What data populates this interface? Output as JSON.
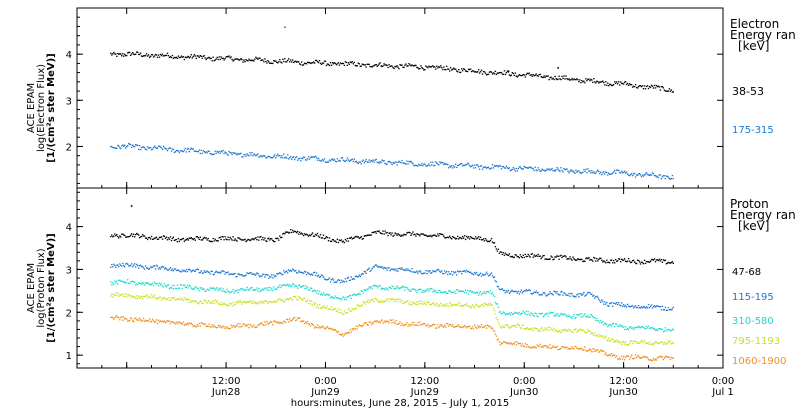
{
  "chart_data": [
    {
      "type": "scatter",
      "panel": "electron",
      "ylabel": [
        "ACE EPAM",
        "log(Electron Flux)",
        "[1/(cm²s ster MeV)]"
      ],
      "legend_title": [
        "Electron",
        "Energy ran",
        "[keV]"
      ],
      "ylim": [
        1.1,
        5.0
      ],
      "yticks": [
        2,
        3,
        4
      ],
      "series": [
        {
          "name": "38-53",
          "color": "#000000",
          "x": [
            0,
            12,
            24,
            36,
            48,
            60,
            66
          ],
          "y": [
            4.0,
            3.9,
            3.8,
            3.72,
            3.55,
            3.35,
            3.22
          ]
        },
        {
          "name": "175-315",
          "color": "#1f77d0",
          "x": [
            0,
            12,
            24,
            36,
            48,
            60,
            66
          ],
          "y": [
            2.0,
            1.85,
            1.72,
            1.62,
            1.52,
            1.42,
            1.33
          ]
        }
      ],
      "outliers": [
        {
          "x": 19,
          "y": 4.6
        },
        {
          "x": 46,
          "y": 3.65
        },
        {
          "x": 52,
          "y": 3.72
        }
      ]
    },
    {
      "type": "scatter",
      "panel": "proton",
      "ylabel": [
        "ACE EPAM",
        "log(Proton Flux)",
        "[1/(cm²s ster MeV)]"
      ],
      "legend_title": [
        "Proton",
        "Energy ran",
        "[keV]"
      ],
      "ylim": [
        0.7,
        4.9
      ],
      "yticks": [
        1,
        2,
        3,
        4
      ],
      "series": [
        {
          "name": "47-68",
          "color": "#000000",
          "x": [
            0,
            6,
            12,
            18,
            20,
            26,
            30,
            36,
            44,
            45,
            50,
            56,
            60,
            66
          ],
          "y": [
            3.8,
            3.7,
            3.72,
            3.7,
            3.9,
            3.65,
            3.85,
            3.8,
            3.7,
            3.35,
            3.3,
            3.22,
            3.2,
            3.18
          ]
        },
        {
          "name": "115-195",
          "color": "#1f77d0",
          "x": [
            0,
            6,
            12,
            18,
            20,
            26,
            30,
            36,
            44,
            45,
            50,
            56,
            58,
            60,
            66
          ],
          "y": [
            3.1,
            3.0,
            2.9,
            2.85,
            3.0,
            2.7,
            3.05,
            2.95,
            2.9,
            2.5,
            2.45,
            2.4,
            2.2,
            2.15,
            2.1
          ]
        },
        {
          "name": "310-580",
          "color": "#20d8cc",
          "x": [
            0,
            6,
            12,
            18,
            20,
            26,
            30,
            36,
            44,
            45,
            50,
            56,
            58,
            60,
            66
          ],
          "y": [
            2.7,
            2.6,
            2.5,
            2.55,
            2.65,
            2.3,
            2.6,
            2.5,
            2.45,
            2.0,
            1.95,
            1.9,
            1.7,
            1.65,
            1.6
          ]
        },
        {
          "name": "795-1193",
          "color": "#c8e020",
          "x": [
            0,
            6,
            12,
            18,
            20,
            26,
            30,
            36,
            44,
            45,
            50,
            56,
            58,
            60,
            66
          ],
          "y": [
            2.4,
            2.3,
            2.2,
            2.25,
            2.35,
            2.0,
            2.3,
            2.2,
            2.15,
            1.7,
            1.6,
            1.55,
            1.35,
            1.3,
            1.28
          ]
        },
        {
          "name": "1060-1900",
          "color": "#f09020",
          "x": [
            0,
            6,
            12,
            18,
            20,
            26,
            30,
            36,
            44,
            45,
            50,
            56,
            58,
            60,
            66
          ],
          "y": [
            1.85,
            1.75,
            1.65,
            1.75,
            1.85,
            1.5,
            1.8,
            1.7,
            1.65,
            1.3,
            1.2,
            1.15,
            1.0,
            0.95,
            0.92
          ]
        }
      ],
      "outliers": [
        {
          "x": 0.5,
          "y": 4.5
        }
      ]
    }
  ],
  "x_axis": {
    "xlim": [
      -6,
      72
    ],
    "ticks": [
      {
        "x": 12,
        "top": "12:00",
        "bottom": "Jun28"
      },
      {
        "x": 24,
        "top": "0:00",
        "bottom": "Jun29"
      },
      {
        "x": 36,
        "top": "12:00",
        "bottom": "Jun29"
      },
      {
        "x": 48,
        "top": "0:00",
        "bottom": "Jun30"
      },
      {
        "x": 60,
        "top": "12:00",
        "bottom": "Jun30"
      },
      {
        "x": 72,
        "top": "0:00",
        "bottom": "Jul 1"
      }
    ],
    "label": "hours:minutes, June 28, 2015 – July  1, 2015"
  }
}
